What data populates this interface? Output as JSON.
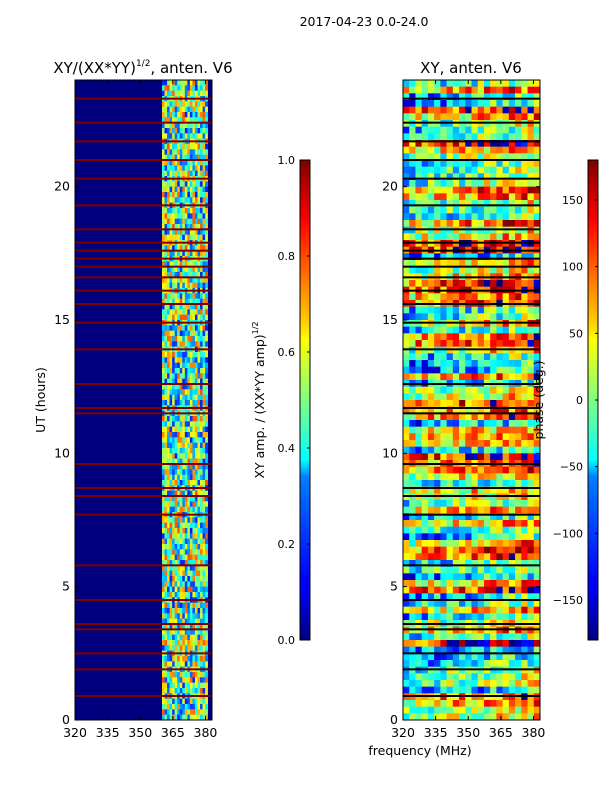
{
  "suptitle": "2017-04-23 0.0-24.0",
  "xlabel": "frequency (MHz)",
  "colors": {
    "background": "#00007f",
    "flag_line": "#7f0000",
    "black_line": "#000000"
  },
  "chart_data": [
    {
      "type": "heatmap",
      "title": "XY/(XX*YY)",
      "title_exponent": "1/2",
      "title_suffix": ", anten. V6",
      "xlabel": "",
      "ylabel": "UT (hours)",
      "xlim": [
        320,
        383
      ],
      "ylim": [
        0,
        24
      ],
      "xticks": [
        "320",
        "335",
        "350",
        "365",
        "380"
      ],
      "yticks": [
        "0",
        "5",
        "10",
        "15",
        "20"
      ],
      "colorbar": {
        "label": "XY amp. / (XX*YY amp)",
        "label_exponent": "1/2",
        "range": [
          0.0,
          1.0
        ],
        "ticks": [
          "0.0",
          "0.2",
          "0.4",
          "0.6",
          "0.8",
          "1.0"
        ],
        "colormap": "jet"
      },
      "active_band_mhz": [
        360,
        381
      ],
      "flagged_rows_hours": [
        0.9,
        1.9,
        2.5,
        3.4,
        3.6,
        4.5,
        5.8,
        7.7,
        8.4,
        8.7,
        9.6,
        11.5,
        11.7,
        12.6,
        13.9,
        14.9,
        15.6,
        16.1,
        16.6,
        17.0,
        17.3,
        17.6,
        17.9,
        18.4,
        19.3,
        20.3,
        21.0,
        21.7,
        22.4,
        23.3
      ]
    },
    {
      "type": "heatmap",
      "title": "XY, anten. V6",
      "xlabel": "frequency (MHz)",
      "ylabel": "",
      "xlim": [
        320,
        383
      ],
      "ylim": [
        0,
        24
      ],
      "xticks": [
        "320",
        "335",
        "350",
        "365",
        "380"
      ],
      "yticks": [
        "0",
        "5",
        "10",
        "15",
        "20"
      ],
      "colorbar": {
        "label": "phase (deg.)",
        "range": [
          -180,
          180
        ],
        "ticks": [
          "−150",
          "−100",
          "−50",
          "0",
          "50",
          "100",
          "150"
        ],
        "tick_values": [
          -150,
          -100,
          -50,
          0,
          50,
          100,
          150
        ],
        "colormap": "jet"
      },
      "flagged_rows_hours": [
        0.9,
        1.9,
        2.5,
        3.4,
        3.6,
        4.5,
        5.8,
        7.7,
        8.4,
        8.7,
        9.6,
        11.5,
        11.7,
        12.6,
        13.9,
        14.9,
        15.6,
        16.1,
        16.6,
        17.0,
        17.3,
        17.6,
        17.9,
        18.4,
        19.3,
        20.3,
        21.0,
        21.7,
        22.4,
        23.3
      ]
    }
  ]
}
